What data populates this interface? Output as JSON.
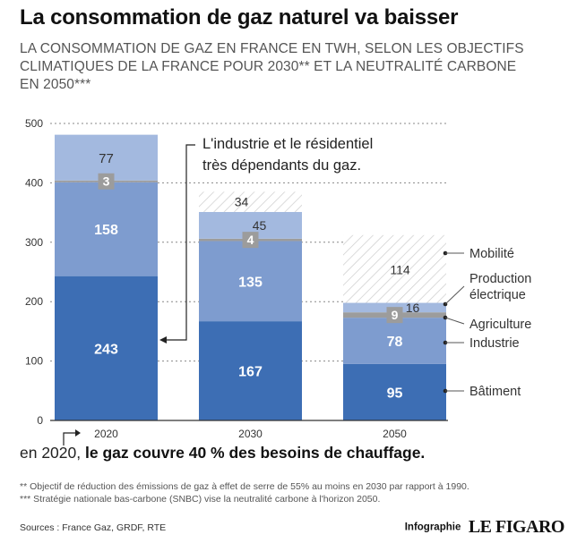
{
  "title": "La consommation de gaz naturel va baisser",
  "subtitle": "LA CONSOMMATION DE GAZ EN FRANCE EN TWH, SELON LES OBJECTIFS\nCLIMATIQUES DE LA FRANCE POUR 2030** ET LA NEUTRALITÉ CARBONE\nEN 2050***",
  "colors": {
    "batiment": "#3d6eb4",
    "industrie": "#7e9ccf",
    "agriculture": "#9c9c9c",
    "production_electrique": "#a3b9df",
    "mobilite": "#c2cce6",
    "hatch": "#cccccc",
    "grid": "#888888",
    "text_dark": "#222222"
  },
  "chart_data": {
    "type": "bar",
    "stacked": true,
    "categories": [
      "2020",
      "2030",
      "2050"
    ],
    "ylim": [
      0,
      500
    ],
    "yticks": [
      0,
      100,
      200,
      300,
      400,
      500
    ],
    "grid": true,
    "series": [
      {
        "name": "Bâtiment",
        "key": "batiment",
        "values": [
          243,
          167,
          95
        ],
        "labels": [
          "243",
          "167",
          "95"
        ]
      },
      {
        "name": "Industrie",
        "key": "industrie",
        "values": [
          158,
          135,
          78
        ],
        "labels": [
          "158",
          "135",
          "78"
        ]
      },
      {
        "name": "Agriculture",
        "key": "agriculture",
        "values": [
          3,
          4,
          9
        ],
        "labels": [
          "3",
          "4",
          "9"
        ]
      },
      {
        "name": "Production électrique",
        "key": "production_electrique",
        "values": [
          77,
          45,
          16
        ],
        "labels": [
          "77",
          "45",
          "16"
        ]
      },
      {
        "name": "Mobilité",
        "key": "mobilite",
        "values": [
          0,
          34,
          114
        ],
        "labels": [
          "",
          "34",
          "114"
        ]
      }
    ],
    "legend_lines": [
      [
        "Mobilité"
      ],
      [
        "Production",
        "électrique"
      ],
      [
        "Agriculture"
      ],
      [
        "Industrie"
      ],
      [
        "Bâtiment"
      ]
    ],
    "annotation_lines": [
      "L'industrie et le résidentiel",
      "très dépendants du gaz."
    ]
  },
  "callout": {
    "prefix": "en 2020, ",
    "bold": "le gaz couvre 40 % des besoins de chauffage."
  },
  "footnotes": [
    "** Objectif de réduction des émissions de gaz à effet de serre de 55% au moins en 2030 par rapport à 1990.",
    "*** Stratégie nationale bas-carbone (SNBC) vise la neutralité carbone à l'horizon 2050."
  ],
  "sources": "Sources : France Gaz, GRDF, RTE",
  "credit": {
    "label": "Infographie",
    "logo": "LE FIGARO"
  }
}
